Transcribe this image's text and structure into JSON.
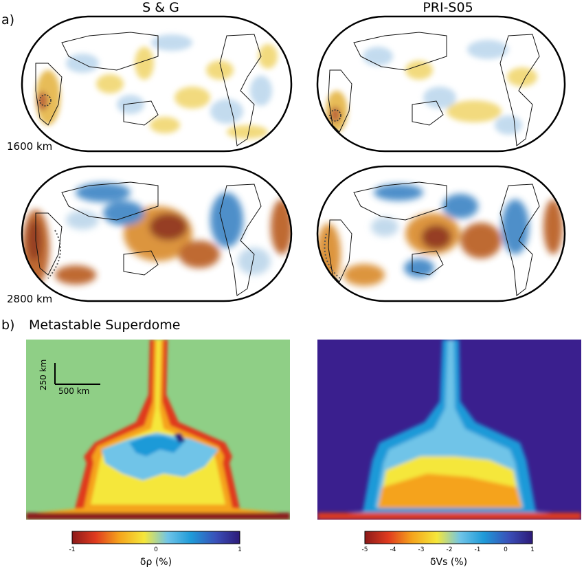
{
  "panel_a": {
    "label": "a)",
    "columns": [
      "S & G",
      "PRI-S05"
    ],
    "depths": [
      "1600 km",
      "2800 km"
    ]
  },
  "panel_b": {
    "label": "b)",
    "title": "Metastable Superdome",
    "scale_bar": {
      "vertical": "250 km",
      "horizontal": "500 km"
    },
    "colorbars": [
      {
        "label": "δρ (%)",
        "ticks": [
          "-1",
          "0",
          "1"
        ],
        "colors": [
          "#8b1a1a",
          "#e03a1e",
          "#f5a31c",
          "#f5e73a",
          "#6fc4e8",
          "#1e9ad8",
          "#3a4fb8",
          "#2d1a78"
        ]
      },
      {
        "label": "δVs (%)",
        "ticks": [
          "-5",
          "-4",
          "-3",
          "-2",
          "-1",
          "0",
          "1"
        ],
        "colors": [
          "#8b1a1a",
          "#e03a1e",
          "#f5a31c",
          "#f5e73a",
          "#6fc4e8",
          "#1e9ad8",
          "#3a4fb8",
          "#2d1a78"
        ]
      }
    ]
  },
  "colors": {
    "slow": "#8b2a0f",
    "orange": "#d98a2b",
    "yellow": "#f2d65a",
    "fast": "#3b83c4",
    "light_blue": "#bcd6ea",
    "density_bg": "#8fcf86",
    "velocity_bg": "#3a1f8e"
  }
}
